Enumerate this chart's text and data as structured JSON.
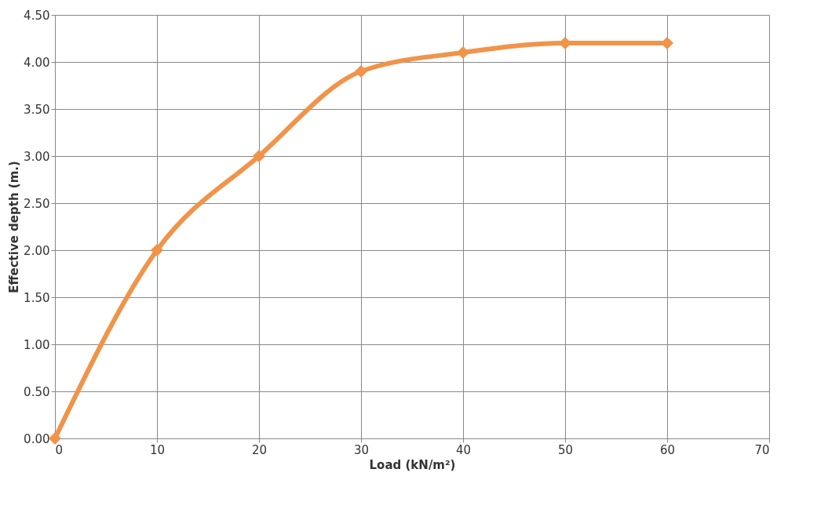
{
  "chart_data": {
    "type": "line",
    "xlabel": "Load (kN/m²)",
    "ylabel": "Effective depth (m.)",
    "x": [
      0,
      10,
      20,
      30,
      40,
      50,
      60
    ],
    "series": [
      {
        "color": "#f0944a",
        "values": [
          0,
          2.0,
          3.0,
          3.9,
          4.1,
          4.2,
          4.2
        ]
      }
    ],
    "xlim": [
      0,
      70
    ],
    "xticks": [
      0,
      10,
      20,
      30,
      40,
      50,
      60,
      70
    ],
    "ylim": [
      0,
      4.5
    ],
    "yticks": [
      {
        "value": 0,
        "label": "0.00"
      },
      {
        "value": 0.5,
        "label": "0.50"
      },
      {
        "value": 1,
        "label": "1.00"
      },
      {
        "value": 1.5,
        "label": "1.50"
      },
      {
        "value": 2,
        "label": "2.00"
      },
      {
        "value": 2.5,
        "label": "2.50"
      },
      {
        "value": 3,
        "label": "3.00"
      },
      {
        "value": 3.5,
        "label": "3.50"
      },
      {
        "value": 4,
        "label": "4.00"
      },
      {
        "value": 4.5,
        "label": "4.50"
      }
    ],
    "grid": true,
    "marker": "diamond",
    "line_style": "solid"
  }
}
